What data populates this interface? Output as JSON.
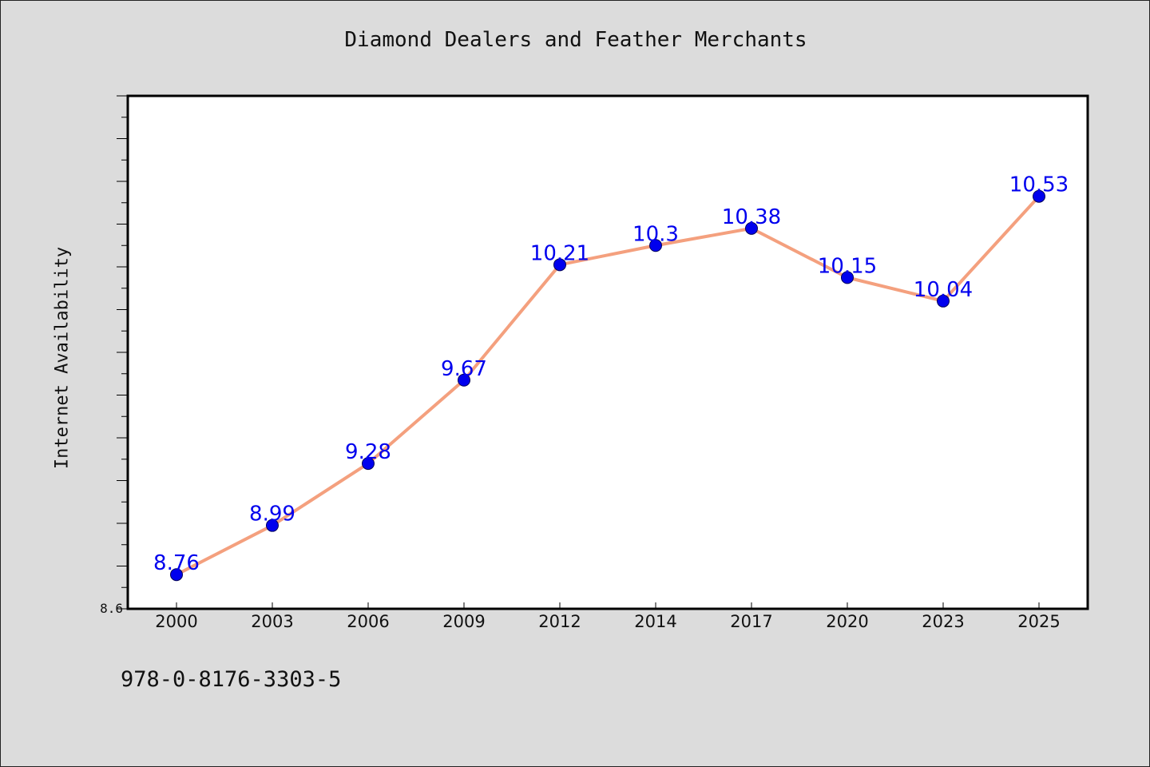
{
  "chart_data": {
    "type": "line",
    "title": "Diamond Dealers and Feather Merchants",
    "xlabel": "",
    "ylabel": "Internet Availability",
    "categories": [
      "2000",
      "2003",
      "2006",
      "2009",
      "2012",
      "2014",
      "2017",
      "2020",
      "2023",
      "2025"
    ],
    "series": [
      {
        "values": [
          8.76,
          8.99,
          9.28,
          9.67,
          10.21,
          10.3,
          10.38,
          10.15,
          10.04,
          10.53
        ],
        "line_color": "#f4a07e",
        "marker_color": "#0000ee",
        "label_color": "#0000ee"
      }
    ],
    "ylim": [
      8.6,
      11.0
    ],
    "y_tick_labels": [
      "8.6"
    ],
    "grid": false,
    "legend": "none"
  },
  "footnote": "978-0-8176-3303-5",
  "colors": {
    "background": "#dcdcdc",
    "plot_background": "#ffffff",
    "axis": "#000000"
  }
}
